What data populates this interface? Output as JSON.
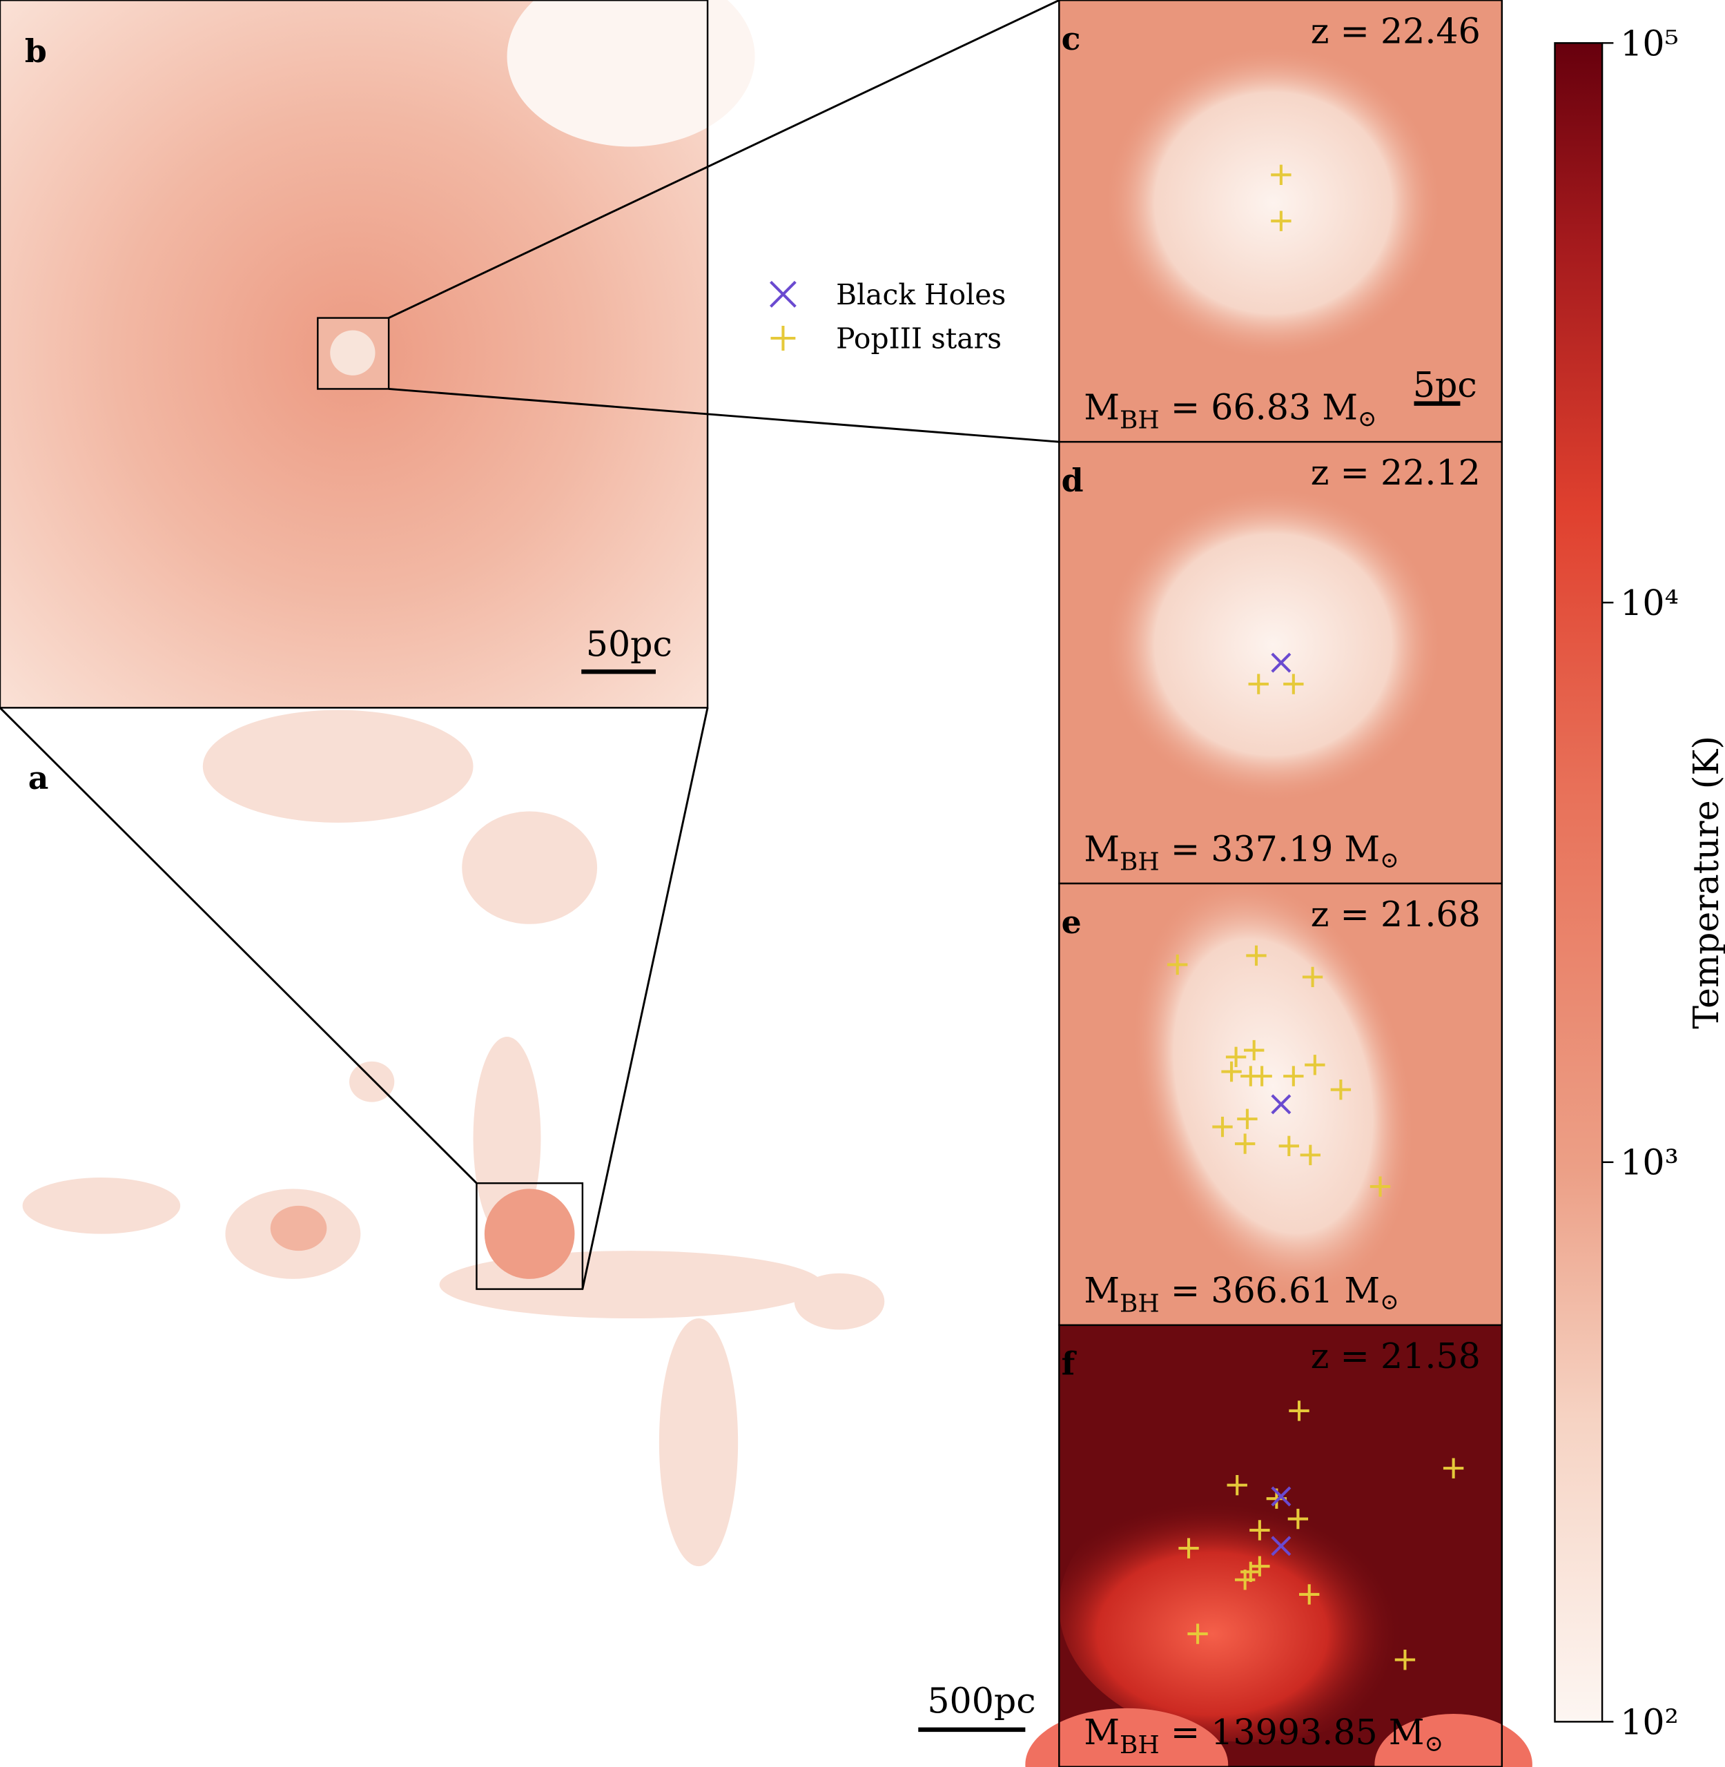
{
  "legend": [
    {
      "label": "Black Holes"
    },
    {
      "label": "PopIII stars"
    }
  ],
  "panels": [
    {
      "label": "b",
      "scale_bar": "50pc"
    },
    {
      "label": "a",
      "scale_bar": "500pc"
    },
    {
      "label": "c",
      "redshift": "z = 22.46",
      "mass": {
        "symbol": "M",
        "subscript": "BH",
        "value": " = 66.83 M",
        "sun": "⊙"
      },
      "scale_bar": "5pc"
    },
    {
      "label": "d",
      "redshift": "z = 22.12",
      "mass": {
        "symbol": "M",
        "subscript": "BH",
        "value": " = 337.19 M",
        "sun": "⊙"
      }
    },
    {
      "label": "e",
      "redshift": "z = 21.68",
      "mass": {
        "symbol": "M",
        "subscript": "BH",
        "value": " = 366.61 M",
        "sun": "⊙"
      }
    },
    {
      "label": "f",
      "redshift": "z = 21.58",
      "mass": {
        "symbol": "M",
        "subscript": "BH",
        "value": " = 13993.85 M",
        "sun": "⊙"
      }
    }
  ],
  "colorbar": {
    "label": "Temperature (K)",
    "scale": "log",
    "lim": [
      100,
      100000
    ],
    "ticks": [
      {
        "value": 100,
        "label": "10²"
      },
      {
        "value": 1000,
        "label": "10³"
      },
      {
        "value": 10000,
        "label": "10⁴"
      },
      {
        "value": 100000,
        "label": "10⁵"
      }
    ]
  }
}
